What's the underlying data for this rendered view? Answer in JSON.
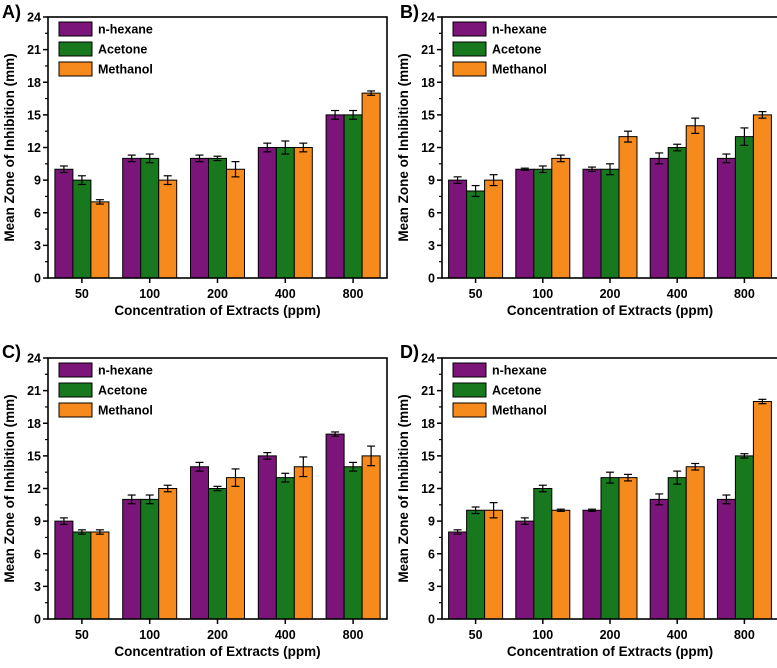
{
  "colors": {
    "n-hexane": "#7b1579",
    "Acetone": "#17781e",
    "Methanol": "#f78a1c"
  },
  "chart_data": [
    {
      "panel": "A)",
      "type": "bar",
      "xlabel": "Concentration of Extracts (ppm)",
      "ylabel": "Mean Zone of Inhibition (mm)",
      "ylim": [
        0,
        24
      ],
      "yticks": [
        0,
        3,
        6,
        9,
        12,
        15,
        18,
        21,
        24
      ],
      "categories": [
        "50",
        "100",
        "200",
        "400",
        "800"
      ],
      "legend_position": "top-left",
      "series": [
        {
          "name": "n-hexane",
          "values": [
            10,
            11,
            11,
            12,
            15
          ],
          "errors": [
            0.3,
            0.3,
            0.3,
            0.4,
            0.4
          ]
        },
        {
          "name": "Acetone",
          "values": [
            9,
            11,
            11,
            12,
            15
          ],
          "errors": [
            0.4,
            0.4,
            0.2,
            0.6,
            0.4
          ]
        },
        {
          "name": "Methanol",
          "values": [
            7,
            9,
            10,
            12,
            17
          ],
          "errors": [
            0.2,
            0.4,
            0.7,
            0.4,
            0.2
          ]
        }
      ]
    },
    {
      "panel": "B)",
      "type": "bar",
      "xlabel": "Concentration of Extracts (ppm)",
      "ylabel": "Mean Zone of Inhibition (mm)",
      "ylim": [
        0,
        24
      ],
      "yticks": [
        0,
        3,
        6,
        9,
        12,
        15,
        18,
        21,
        24
      ],
      "categories": [
        "50",
        "100",
        "200",
        "400",
        "800"
      ],
      "legend_position": "top-left",
      "series": [
        {
          "name": "n-hexane",
          "values": [
            9,
            10,
            10,
            11,
            11
          ],
          "errors": [
            0.3,
            0.1,
            0.2,
            0.5,
            0.4
          ]
        },
        {
          "name": "Acetone",
          "values": [
            8,
            10,
            10,
            12,
            13
          ],
          "errors": [
            0.5,
            0.3,
            0.5,
            0.3,
            0.8
          ]
        },
        {
          "name": "Methanol",
          "values": [
            9,
            11,
            13,
            14,
            15
          ],
          "errors": [
            0.5,
            0.3,
            0.5,
            0.7,
            0.3
          ]
        }
      ]
    },
    {
      "panel": "C)",
      "type": "bar",
      "xlabel": "Concentration of Extracts (ppm)",
      "ylabel": "Mean Zone of Inhibition (mm)",
      "ylim": [
        0,
        24
      ],
      "yticks": [
        0,
        3,
        6,
        9,
        12,
        15,
        18,
        21,
        24
      ],
      "categories": [
        "50",
        "100",
        "200",
        "400",
        "800"
      ],
      "legend_position": "top-left",
      "series": [
        {
          "name": "n-hexane",
          "values": [
            9,
            11,
            14,
            15,
            17
          ],
          "errors": [
            0.3,
            0.4,
            0.4,
            0.3,
            0.2
          ]
        },
        {
          "name": "Acetone",
          "values": [
            8,
            11,
            12,
            13,
            14
          ],
          "errors": [
            0.2,
            0.4,
            0.2,
            0.4,
            0.4
          ]
        },
        {
          "name": "Methanol",
          "values": [
            8,
            12,
            13,
            14,
            15
          ],
          "errors": [
            0.2,
            0.3,
            0.8,
            0.9,
            0.9
          ]
        }
      ]
    },
    {
      "panel": "D)",
      "type": "bar",
      "xlabel": "Concentration of Extracts (ppm)",
      "ylabel": "Mean Zone of Inhibition (mm)",
      "ylim": [
        0,
        24
      ],
      "yticks": [
        0,
        3,
        6,
        9,
        12,
        15,
        18,
        21,
        24
      ],
      "categories": [
        "50",
        "100",
        "200",
        "400",
        "800"
      ],
      "legend_position": "top-left",
      "series": [
        {
          "name": "n-hexane",
          "values": [
            8,
            9,
            10,
            11,
            11
          ],
          "errors": [
            0.2,
            0.3,
            0.1,
            0.5,
            0.4
          ]
        },
        {
          "name": "Acetone",
          "values": [
            10,
            12,
            13,
            13,
            15
          ],
          "errors": [
            0.3,
            0.3,
            0.5,
            0.6,
            0.2
          ]
        },
        {
          "name": "Methanol",
          "values": [
            10,
            10,
            13,
            14,
            20
          ],
          "errors": [
            0.7,
            0.1,
            0.3,
            0.3,
            0.2
          ]
        }
      ]
    }
  ]
}
